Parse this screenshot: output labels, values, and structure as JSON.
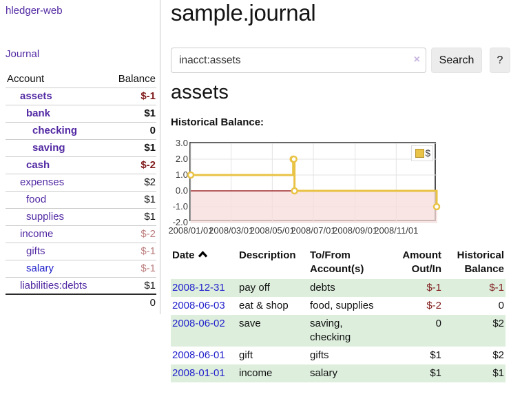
{
  "app": {
    "brand": "hledger-web",
    "nav_journal": "Journal"
  },
  "colors": {
    "link_purple": "#5229a3",
    "link_blue": "#2222cc",
    "negative_strong": "#7f1a1a",
    "negative_muted": "#bd7f7f",
    "row_stripe_green": "#ddeedd",
    "chart_line": "#e9c345",
    "zero_line": "#8b0000",
    "negative_region_pink": "#f8dcdc"
  },
  "sidebar": {
    "header": {
      "account": "Account",
      "balance": "Balance"
    },
    "accounts": [
      {
        "name": "assets",
        "balance": "$-1",
        "level": 1,
        "bold": true,
        "neg": "strong"
      },
      {
        "name": "bank",
        "balance": "$1",
        "level": 2,
        "bold": true
      },
      {
        "name": "checking",
        "balance": "0",
        "level": 3,
        "bold": true
      },
      {
        "name": "saving",
        "balance": "$1",
        "level": 3,
        "bold": true
      },
      {
        "name": "cash",
        "balance": "$-2",
        "level": 2,
        "bold": true,
        "neg": "strong"
      },
      {
        "name": "expenses",
        "balance": "$2",
        "level": 1
      },
      {
        "name": "food",
        "balance": "$1",
        "level": 2
      },
      {
        "name": "supplies",
        "balance": "$1",
        "level": 2
      },
      {
        "name": "income",
        "balance": "$-2",
        "level": 1,
        "neg": "muted"
      },
      {
        "name": "gifts",
        "balance": "$-1",
        "level": 2,
        "neg": "muted"
      },
      {
        "name": "salary",
        "balance": "$-1",
        "level": 2,
        "neg": "muted",
        "link_color": "blue"
      },
      {
        "name": "liabilities:debts",
        "balance": "$1",
        "level": 1
      }
    ],
    "total": "0"
  },
  "header": {
    "title": "sample.journal"
  },
  "search": {
    "value": "inacct:assets",
    "clear_icon": "×",
    "button": "Search",
    "help_button": "?"
  },
  "account_page": {
    "heading": "assets",
    "chart_label": "Historical Balance:"
  },
  "chart_data": {
    "type": "line",
    "step": true,
    "title": "Historical Balance",
    "series": [
      {
        "name": "$",
        "color": "#e9c345",
        "points": [
          {
            "x": "2008-01-01",
            "y": 1
          },
          {
            "x": "2008-06-01",
            "y": 2
          },
          {
            "x": "2008-06-02",
            "y": 2
          },
          {
            "x": "2008-06-03",
            "y": 0
          },
          {
            "x": "2008-12-31",
            "y": -1
          }
        ]
      }
    ],
    "x_range": [
      "2008-01-01",
      "2009-01-01"
    ],
    "x_ticks": [
      "2008/01/01",
      "2008/03/01",
      "2008/05/01",
      "2008/07/01",
      "2008/09/01",
      "2008/11/01"
    ],
    "y_ticks": [
      3.0,
      2.0,
      1.0,
      0.0,
      -1.0,
      -2.0
    ],
    "ylim": [
      -2,
      3
    ],
    "grid": true,
    "legend_position": "top-right",
    "negative_region": true
  },
  "register": {
    "columns": [
      {
        "line1": "Date",
        "line2": "",
        "sorted": "asc"
      },
      {
        "line1": "Description",
        "line2": ""
      },
      {
        "line1": "To/From",
        "line2": "Account(s)"
      },
      {
        "line1": "Amount",
        "line2": "Out/In"
      },
      {
        "line1": "Historical",
        "line2": "Balance"
      }
    ],
    "rows": [
      {
        "date": "2008-12-31",
        "description": "pay off",
        "accounts": "debts",
        "amount": "$-1",
        "amount_neg": true,
        "balance": "$-1",
        "balance_neg": true
      },
      {
        "date": "2008-06-03",
        "description": "eat & shop",
        "accounts": "food, supplies",
        "amount": "$-2",
        "amount_neg": true,
        "balance": "0",
        "balance_neg": false
      },
      {
        "date": "2008-06-02",
        "description": "save",
        "accounts": "saving, checking",
        "amount": "0",
        "amount_neg": false,
        "balance": "$2",
        "balance_neg": false
      },
      {
        "date": "2008-06-01",
        "description": "gift",
        "accounts": "gifts",
        "amount": "$1",
        "amount_neg": false,
        "balance": "$2",
        "balance_neg": false
      },
      {
        "date": "2008-01-01",
        "description": "income",
        "accounts": "salary",
        "amount": "$1",
        "amount_neg": false,
        "balance": "$1",
        "balance_neg": false
      }
    ]
  }
}
